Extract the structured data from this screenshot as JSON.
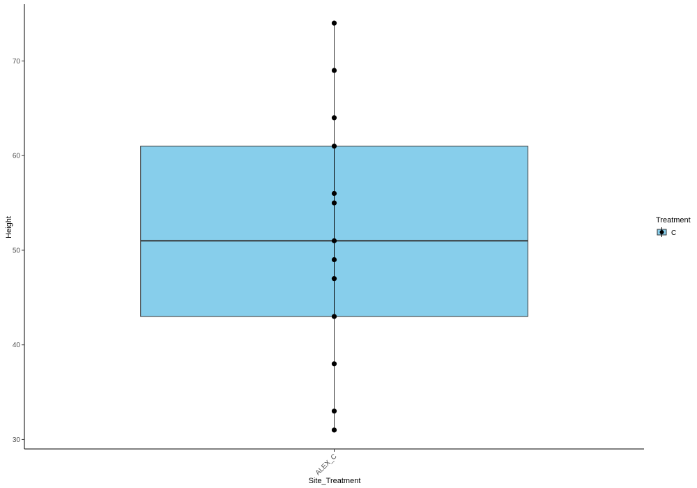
{
  "chart_data": {
    "type": "box",
    "xlabel": "Site_Treatment",
    "ylabel": "Height",
    "ylim": [
      29,
      76
    ],
    "yticks": [
      30,
      40,
      50,
      60,
      70
    ],
    "categories": [
      "ALEX_C"
    ],
    "boxes": [
      {
        "category": "ALEX_C",
        "group": "C",
        "min": 31,
        "q1": 43,
        "median": 51,
        "q3": 61,
        "max": 74,
        "points": [
          74,
          69,
          64,
          61,
          56,
          55,
          51,
          49,
          47,
          43,
          38,
          33,
          31
        ]
      }
    ],
    "legend": {
      "title": "Treatment",
      "items": [
        "C"
      ],
      "position": "right"
    },
    "colors": {
      "box_fill": "#87CEEB",
      "box_stroke": "#333333",
      "points": "#000000",
      "axis": "#000000"
    },
    "grid": false
  }
}
